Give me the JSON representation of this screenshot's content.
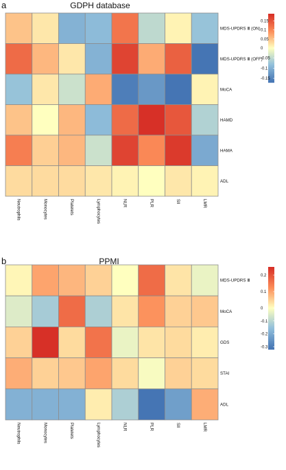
{
  "chart_data": [
    {
      "type": "heatmap",
      "panel_label": "a",
      "title": "GDPH database",
      "columns": [
        "Neutrophils",
        "Monocytes",
        "Platelets",
        "Lymphocytes",
        "NLR",
        "PLR",
        "SII",
        "LMR"
      ],
      "rows": [
        "MDS-UPDRS Ⅲ (ON)",
        "MDS-UPDRS Ⅲ (OFF)",
        "MoCA",
        "HAMD",
        "HAMA",
        "ADL"
      ],
      "values": [
        [
          0.05,
          0.02,
          -0.1,
          -0.09,
          0.12,
          -0.05,
          0.01,
          -0.08
        ],
        [
          0.13,
          0.06,
          0.02,
          -0.1,
          0.17,
          0.07,
          0.14,
          -0.17
        ],
        [
          -0.08,
          0.02,
          -0.04,
          0.07,
          -0.16,
          -0.13,
          -0.17,
          0.01
        ],
        [
          0.05,
          0.0,
          0.06,
          -0.09,
          0.13,
          0.19,
          0.15,
          -0.06
        ],
        [
          0.11,
          0.04,
          0.06,
          -0.04,
          0.17,
          0.1,
          0.18,
          -0.11
        ],
        [
          0.03,
          0.03,
          0.03,
          0.02,
          0.01,
          0.0,
          0.02,
          0.01
        ]
      ],
      "colorbar": {
        "min": -0.17,
        "max": 0.19,
        "ticks": [
          0.15,
          0.1,
          0.05,
          0,
          -0.05,
          -0.1,
          -0.15
        ]
      }
    },
    {
      "type": "heatmap",
      "panel_label": "b",
      "title": "PPMI",
      "columns": [
        "Neutrophils",
        "Monocytes",
        "Platelets",
        "Lymphocytes",
        "NLR",
        "PLR",
        "SII",
        "LMR"
      ],
      "rows": [
        "MDS-UPDRS Ⅲ",
        "MoCA",
        "GDS",
        "STAI",
        "ADL"
      ],
      "values": [
        [
          0.01,
          0.1,
          0.08,
          0.05,
          0.0,
          0.17,
          0.03,
          -0.03
        ],
        [
          -0.05,
          -0.13,
          0.17,
          -0.12,
          0.03,
          0.12,
          0.05,
          0.06
        ],
        [
          0.05,
          0.25,
          0.04,
          0.16,
          -0.03,
          0.03,
          0.04,
          0.02
        ],
        [
          0.09,
          0.05,
          0.06,
          0.1,
          0.04,
          -0.01,
          0.05,
          0.04
        ],
        [
          -0.19,
          -0.19,
          -0.19,
          0.02,
          -0.12,
          -0.32,
          -0.23,
          0.09
        ]
      ],
      "colorbar": {
        "min": -0.32,
        "max": 0.25,
        "ticks": [
          0.2,
          0.1,
          0,
          -0.1,
          -0.2,
          -0.3
        ]
      }
    }
  ],
  "colors": {
    "low": "#4575b4",
    "mid": "#ffffbf",
    "high": "#d73027",
    "grid": "#8c8c8c"
  }
}
